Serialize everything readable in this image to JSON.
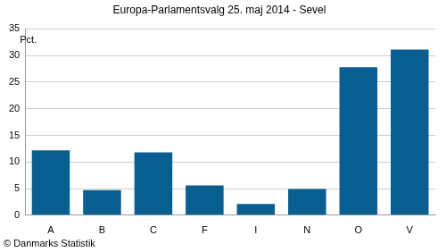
{
  "chart_data": {
    "type": "bar",
    "title": "Europa-Parlamentsvalg 25. maj 2014 - Sevel",
    "ylabel": "Pct.",
    "annotations": [
      "© Danmarks Statistik"
    ],
    "categories": [
      "A",
      "B",
      "C",
      "F",
      "I",
      "N",
      "O",
      "V"
    ],
    "values": [
      12.2,
      4.7,
      11.8,
      5.6,
      2.1,
      4.9,
      27.8,
      31.1
    ],
    "color": "#0a5f91",
    "ylim": [
      0,
      35
    ],
    "yticks": [
      0,
      5,
      10,
      15,
      20,
      25,
      30,
      35
    ],
    "grid": true
  }
}
